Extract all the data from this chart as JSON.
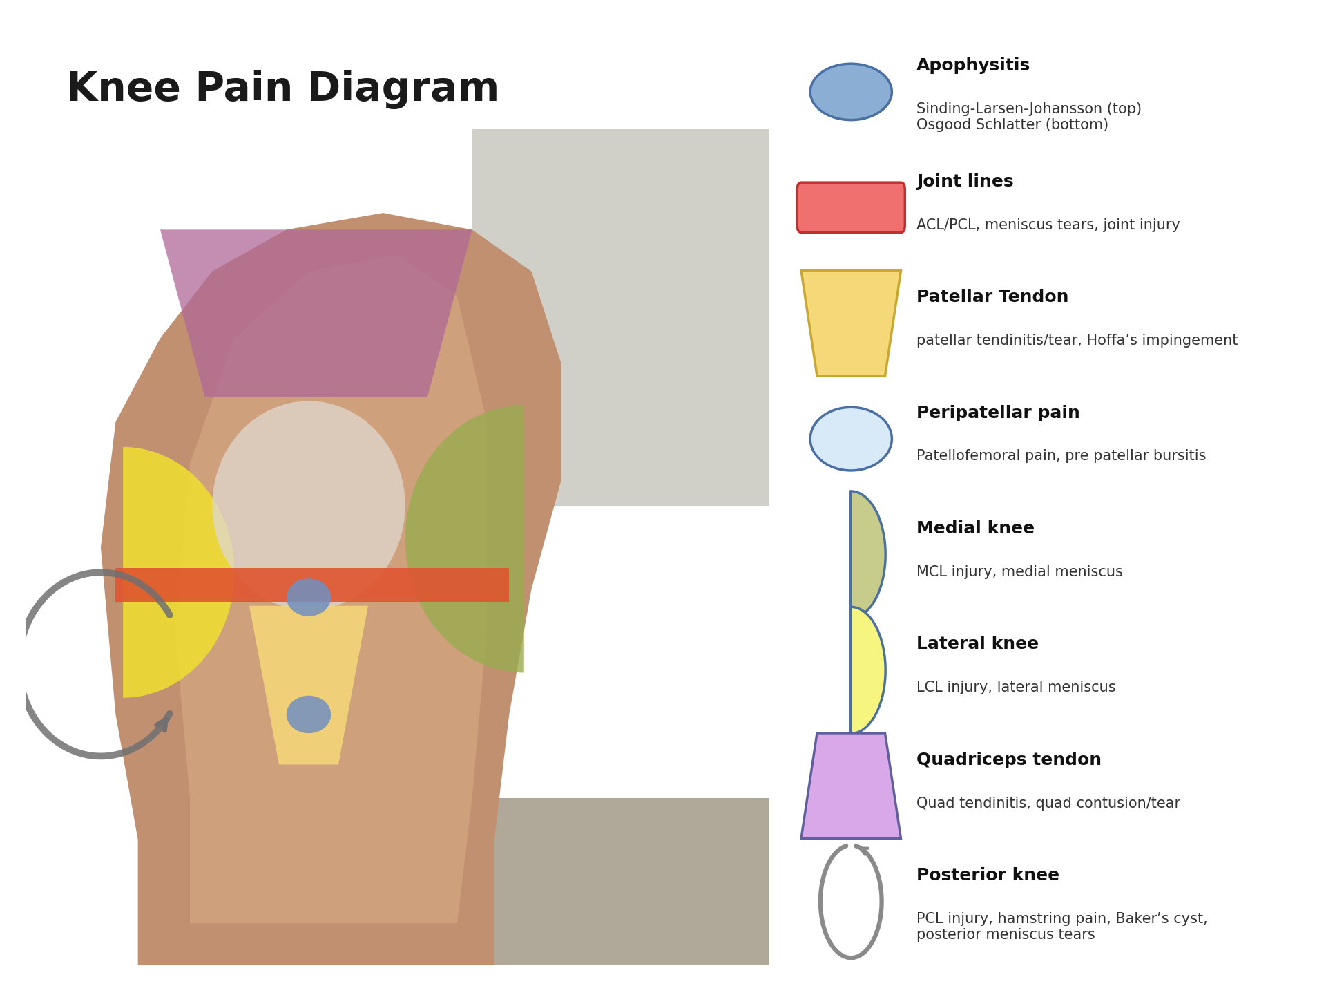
{
  "title": "Knee Pain Diagram",
  "title_fontsize": 42,
  "title_fontweight": "bold",
  "background_color": "#ffffff",
  "legend_items": [
    {
      "shape": "ellipse",
      "fill_color": "#8aaed4",
      "edge_color": "#4a6fa5",
      "lw": 2.5,
      "label_bold": "Apophysitis",
      "label_normal": "Sinding-Larsen-Johansson (top)\nOsgood Schlatter (bottom)"
    },
    {
      "shape": "rect",
      "fill_color": "#f07070",
      "edge_color": "#c03030",
      "lw": 2.5,
      "label_bold": "Joint lines",
      "label_normal": "ACL/PCL, meniscus tears, joint injury"
    },
    {
      "shape": "trapezoid_down",
      "fill_color": "#f5d878",
      "edge_color": "#c9a830",
      "lw": 2.5,
      "label_bold": "Patellar Tendon",
      "label_normal": "patellar tendinitis/tear, Hoffa’s impingement"
    },
    {
      "shape": "ellipse_light",
      "fill_color": "#d8eaf8",
      "edge_color": "#4a6fa5",
      "lw": 2.5,
      "label_bold": "Peripatellar pain",
      "label_normal": "Patellofemoral pain, pre patellar bursitis"
    },
    {
      "shape": "half_circle_right",
      "fill_color": "#c8cc8a",
      "edge_color": "#4a6fa5",
      "lw": 2.5,
      "label_bold": "Medial knee",
      "label_normal": "MCL injury, medial meniscus"
    },
    {
      "shape": "half_circle_right_yellow",
      "fill_color": "#f5f580",
      "edge_color": "#4a6fa5",
      "lw": 2.5,
      "label_bold": "Lateral knee",
      "label_normal": "LCL injury, lateral meniscus"
    },
    {
      "shape": "trapezoid_up",
      "fill_color": "#d8a8e8",
      "edge_color": "#6060a0",
      "lw": 2.5,
      "label_bold": "Quadriceps tendon",
      "label_normal": "Quad tendinitis, quad contusion/tear"
    },
    {
      "shape": "arrow_circle",
      "fill_color": "#8a8a8a",
      "edge_color": "#4a6fa5",
      "lw": 3.0,
      "label_bold": "Posterior knee",
      "label_normal": "PCL injury, hamstring pain, Baker’s cyst,\nposterior meniscus tears"
    }
  ],
  "knee_shapes": {
    "bg_color": "#c8956a",
    "quad_color": "#b06898",
    "patella_color": "#e0d8d0",
    "patellar_tendon_color": "#f5d878",
    "joint_line_color": "#e05530",
    "medial_color": "#9aac50",
    "lateral_color": "#f0e030",
    "apo_color": "#7090c0",
    "arrow_color": "#707070"
  }
}
